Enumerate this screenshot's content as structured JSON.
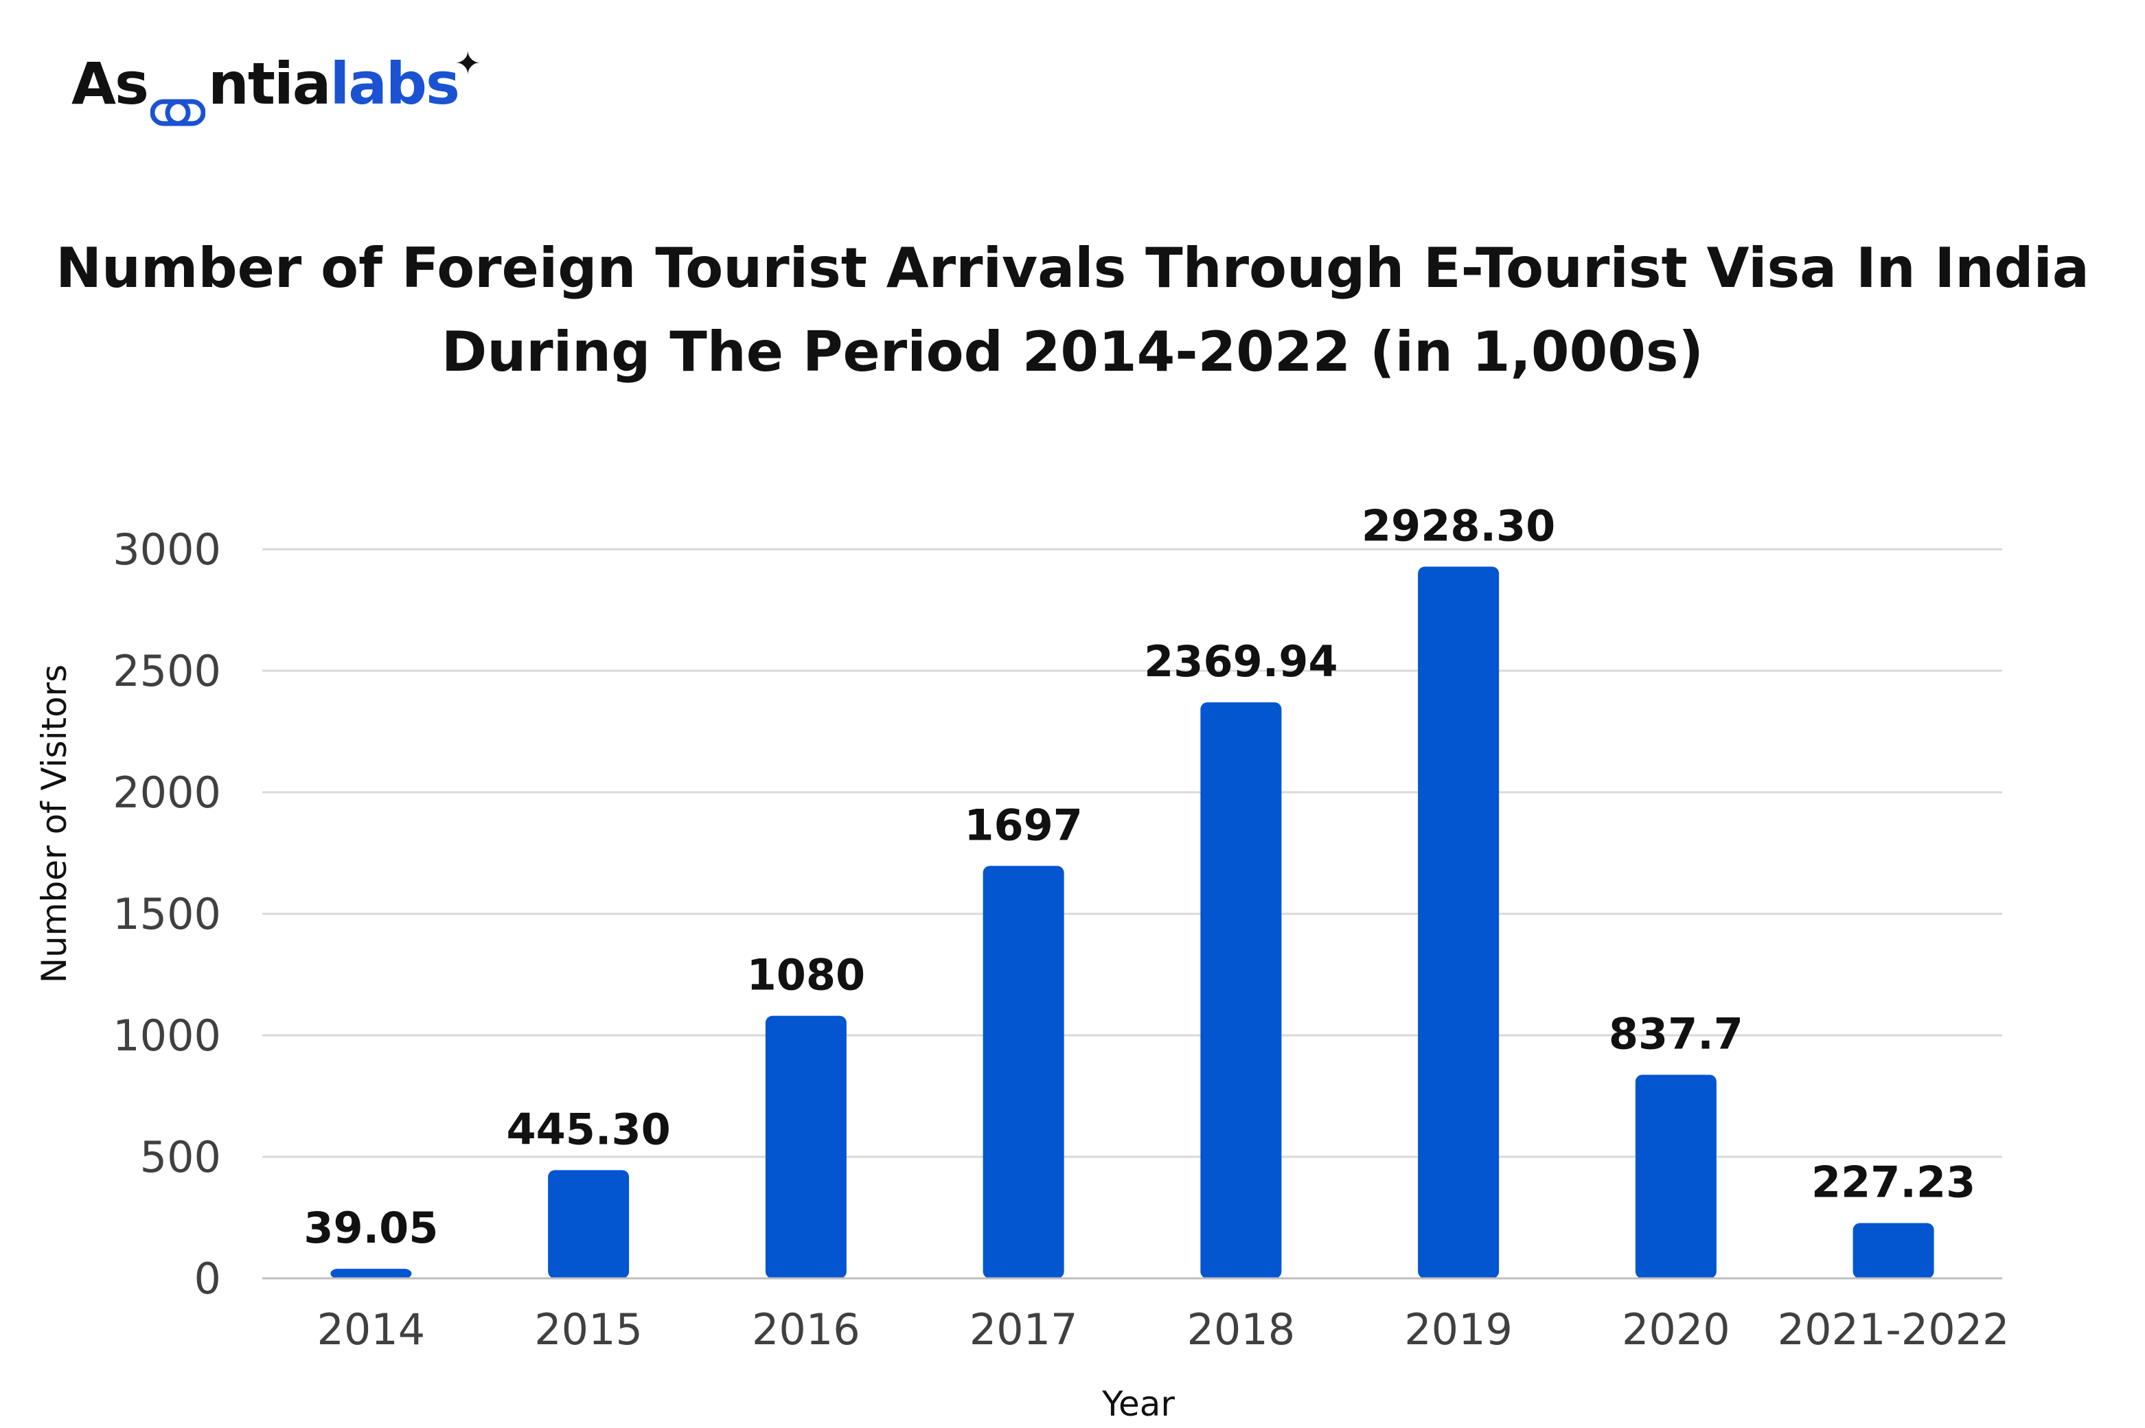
{
  "brand": {
    "name_dark": "As",
    "name_mark_icon": "chain-link-icon",
    "name_dark2": "ntia",
    "name_blue": "labs",
    "sparkle_icon": "sparkle-icon"
  },
  "colors": {
    "bar": "#0355D0",
    "grid": "#D9D9D9",
    "brand_blue": "#1A52D1"
  },
  "chart_data": {
    "type": "bar",
    "title": "Number of Foreign Tourist Arrivals Through E-Tourist Visa In India During The Period 2014-2022 (in 1,000s)",
    "title_lines": [
      "Number of Foreign Tourist Arrivals Through E-Tourist Visa In India",
      "During The Period 2014-2022 (in 1,000s)"
    ],
    "xlabel": "Year",
    "ylabel": "Number of Visitors",
    "categories": [
      "2014",
      "2015",
      "2016",
      "2017",
      "2018",
      "2019",
      "2020",
      "2021-2022"
    ],
    "values": [
      39.05,
      445.3,
      1080,
      1697,
      2369.94,
      2928.3,
      837.7,
      227.23
    ],
    "data_labels": [
      "39.05",
      "445.30",
      "1080",
      "1697",
      "2369.94",
      "2928.30",
      "837.7",
      "227.23"
    ],
    "ylim": [
      0,
      3000
    ],
    "yticks": [
      0,
      500,
      1000,
      1500,
      2000,
      2500,
      3000
    ],
    "grid": true,
    "legend": "none"
  }
}
